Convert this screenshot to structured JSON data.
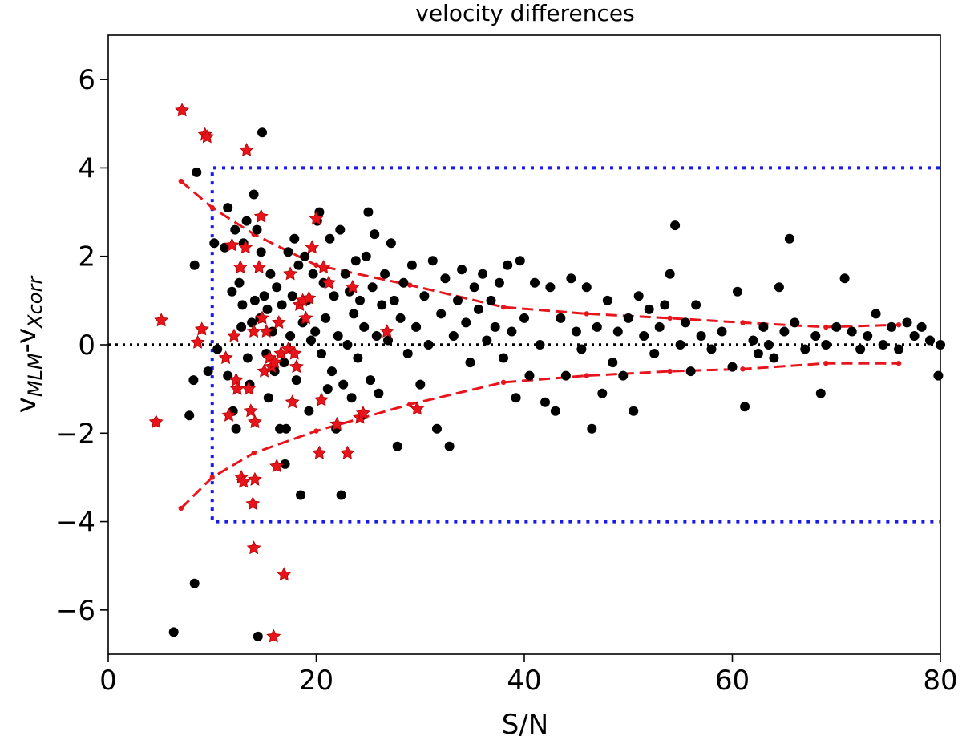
{
  "chart_data": {
    "type": "scatter",
    "title": "velocity differences",
    "xlabel": "S/N",
    "ylabel": {
      "base1": "v",
      "sub1": "MLM",
      "sep": "-v",
      "sub2": "Xcorr"
    },
    "xlim": [
      0,
      80
    ],
    "ylim": [
      -7,
      7
    ],
    "xticks": [
      0,
      20,
      40,
      60,
      80
    ],
    "yticks": [
      -6,
      -4,
      -2,
      0,
      2,
      4,
      6
    ],
    "xtick_labels": [
      "0",
      "20",
      "40",
      "60",
      "80"
    ],
    "ytick_labels": [
      "−6",
      "−4",
      "−2",
      "0",
      "2",
      "4",
      "6"
    ],
    "grid": false,
    "colors": {
      "points": "#000000",
      "flagged": "#e8141c",
      "envelope": "#e8141c",
      "box": "#1a1aee",
      "zero": "#000000"
    },
    "zero_line": {
      "y": 0,
      "style": "dotted",
      "color": "#000000"
    },
    "selection_box": {
      "x_min": 10,
      "x_max": 80,
      "y_min": -4,
      "y_max": 4,
      "style": "dotted",
      "color": "#1a1aee"
    },
    "envelope": [
      {
        "name": "upper",
        "style": "dashed",
        "x": [
          7,
          10,
          14,
          20,
          29,
          38,
          46,
          54,
          61,
          69,
          76
        ],
        "y": [
          3.7,
          3.1,
          2.5,
          1.8,
          1.35,
          0.85,
          0.7,
          0.6,
          0.5,
          0.4,
          0.45
        ]
      },
      {
        "name": "lower",
        "style": "dashed",
        "x": [
          7,
          10,
          14,
          20,
          29,
          38,
          46,
          54,
          61,
          69,
          76
        ],
        "y": [
          -3.7,
          -3.0,
          -2.45,
          -1.95,
          -1.35,
          -0.85,
          -0.7,
          -0.6,
          -0.55,
          -0.42,
          -0.42
        ]
      }
    ],
    "series": [
      {
        "name": "measurements",
        "marker": "circle",
        "points": [
          [
            6.3,
            -6.5
          ],
          [
            7.8,
            -1.6
          ],
          [
            8.2,
            -0.8
          ],
          [
            8.3,
            1.8
          ],
          [
            8.5,
            3.9
          ],
          [
            8.3,
            -5.4
          ],
          [
            9.6,
            -0.6
          ],
          [
            10.2,
            2.3
          ],
          [
            10.5,
            -0.1
          ],
          [
            11.2,
            2.2
          ],
          [
            11.5,
            3.1
          ],
          [
            11.5,
            -0.7
          ],
          [
            11.9,
            1.2
          ],
          [
            12,
            -1.5
          ],
          [
            12.2,
            2.6
          ],
          [
            12.3,
            -1.9
          ],
          [
            12.6,
            1.4
          ],
          [
            12.8,
            0.4
          ],
          [
            12.9,
            0.9
          ],
          [
            13,
            2.3
          ],
          [
            13.3,
            2.8
          ],
          [
            13.4,
            -0.3
          ],
          [
            13.6,
            -0.9
          ],
          [
            13.8,
            0.5
          ],
          [
            14,
            3.4
          ],
          [
            14.1,
            1.0
          ],
          [
            14.3,
            2.6
          ],
          [
            14.4,
            -6.6
          ],
          [
            14.6,
            0.6
          ],
          [
            14.7,
            2.1
          ],
          [
            14.8,
            4.8
          ],
          [
            15,
            1.1
          ],
          [
            15.2,
            -0.2
          ],
          [
            15.3,
            0.8
          ],
          [
            15.4,
            -1.2
          ],
          [
            15.6,
            1.6
          ],
          [
            15.8,
            0.3
          ],
          [
            16,
            -0.6
          ],
          [
            16.2,
            1.3
          ],
          [
            16.5,
            -1.9
          ],
          [
            16.7,
            0.9
          ],
          [
            16.9,
            -0.4
          ],
          [
            17,
            -2.7
          ],
          [
            17.1,
            -1.9
          ],
          [
            17.3,
            2.1
          ],
          [
            17.5,
            0.2
          ],
          [
            17.7,
            1.1
          ],
          [
            17.9,
            2.4
          ],
          [
            18.1,
            -0.8
          ],
          [
            18.3,
            1.8
          ],
          [
            18.5,
            -3.4
          ],
          [
            18.7,
            0.5
          ],
          [
            18.9,
            2.0
          ],
          [
            19.1,
            1.0
          ],
          [
            19.3,
            -1.5
          ],
          [
            19.5,
            0.1
          ],
          [
            19.7,
            1.6
          ],
          [
            19.9,
            0.3
          ],
          [
            20.1,
            2.8
          ],
          [
            20.3,
            3.0
          ],
          [
            20.5,
            -0.2
          ],
          [
            20.7,
            1.4
          ],
          [
            20.9,
            0.6
          ],
          [
            21.1,
            -1.0
          ],
          [
            21.3,
            2.4
          ],
          [
            21.5,
            -0.6
          ],
          [
            21.7,
            1.1
          ],
          [
            21.9,
            -1.9
          ],
          [
            22.1,
            0.2
          ],
          [
            22.3,
            2.6
          ],
          [
            22.4,
            -3.4
          ],
          [
            22.6,
            -0.9
          ],
          [
            22.8,
            1.6
          ],
          [
            23,
            0.0
          ],
          [
            23.2,
            1.2
          ],
          [
            23.4,
            -1.2
          ],
          [
            23.6,
            0.7
          ],
          [
            23.8,
            1.9
          ],
          [
            24,
            -0.3
          ],
          [
            24.2,
            1.0
          ],
          [
            24.4,
            -1.6
          ],
          [
            24.6,
            0.4
          ],
          [
            24.8,
            2.0
          ],
          [
            25,
            3.0
          ],
          [
            25.2,
            -0.8
          ],
          [
            25.4,
            1.3
          ],
          [
            25.6,
            2.5
          ],
          [
            25.8,
            0.2
          ],
          [
            26,
            -1.1
          ],
          [
            26.3,
            0.9
          ],
          [
            26.6,
            1.6
          ],
          [
            26.9,
            0.1
          ],
          [
            27.2,
            2.3
          ],
          [
            27.5,
            1.0
          ],
          [
            27.8,
            -2.3
          ],
          [
            28.1,
            0.6
          ],
          [
            28.4,
            1.4
          ],
          [
            28.8,
            -0.2
          ],
          [
            29.2,
            1.8
          ],
          [
            29.6,
            0.4
          ],
          [
            30,
            -0.9
          ],
          [
            30.4,
            1.1
          ],
          [
            30.8,
            0.0
          ],
          [
            31.2,
            1.9
          ],
          [
            31.6,
            -1.9
          ],
          [
            32,
            0.7
          ],
          [
            32.4,
            1.5
          ],
          [
            32.8,
            -2.3
          ],
          [
            33.2,
            0.2
          ],
          [
            33.6,
            1.0
          ],
          [
            34,
            1.7
          ],
          [
            34.4,
            0.5
          ],
          [
            34.8,
            -0.4
          ],
          [
            35.2,
            1.3
          ],
          [
            35.6,
            0.8
          ],
          [
            36,
            1.6
          ],
          [
            36.4,
            0.1
          ],
          [
            36.8,
            1.0
          ],
          [
            37.2,
            0.4
          ],
          [
            37.6,
            1.4
          ],
          [
            38,
            -0.3
          ],
          [
            38.4,
            1.8
          ],
          [
            38.8,
            0.3
          ],
          [
            39.2,
            -1.2
          ],
          [
            39.6,
            1.9
          ],
          [
            40,
            0.6
          ],
          [
            40.5,
            -0.7
          ],
          [
            41,
            1.4
          ],
          [
            41.5,
            0.0
          ],
          [
            42,
            -1.3
          ],
          [
            42.5,
            1.3
          ],
          [
            43,
            -1.5
          ],
          [
            43.5,
            0.6
          ],
          [
            44,
            -0.7
          ],
          [
            44.5,
            1.5
          ],
          [
            45,
            0.3
          ],
          [
            45.5,
            -0.1
          ],
          [
            46,
            1.3
          ],
          [
            46.5,
            -1.9
          ],
          [
            47,
            0.4
          ],
          [
            47.5,
            -1.1
          ],
          [
            48,
            1.0
          ],
          [
            48.5,
            -0.4
          ],
          [
            49,
            0.3
          ],
          [
            49.5,
            -0.7
          ],
          [
            50,
            0.6
          ],
          [
            50.5,
            -1.5
          ],
          [
            51,
            1.1
          ],
          [
            51.5,
            0.2
          ],
          [
            52,
            0.8
          ],
          [
            52.5,
            -0.2
          ],
          [
            53,
            0.4
          ],
          [
            53.5,
            0.9
          ],
          [
            54,
            1.6
          ],
          [
            54.5,
            2.7
          ],
          [
            55,
            0.0
          ],
          [
            55.5,
            0.5
          ],
          [
            56,
            -0.6
          ],
          [
            56.5,
            0.9
          ],
          [
            57,
            0.2
          ],
          [
            58,
            -0.1
          ],
          [
            59,
            0.3
          ],
          [
            60,
            -0.5
          ],
          [
            60.5,
            1.2
          ],
          [
            61.2,
            -1.4
          ],
          [
            62,
            0.1
          ],
          [
            62.5,
            -0.2
          ],
          [
            63,
            0.4
          ],
          [
            63.5,
            0.0
          ],
          [
            64,
            -0.3
          ],
          [
            64.5,
            1.3
          ],
          [
            65,
            0.3
          ],
          [
            65.5,
            2.4
          ],
          [
            66,
            0.5
          ],
          [
            67,
            -0.1
          ],
          [
            68,
            0.2
          ],
          [
            68.5,
            -1.1
          ],
          [
            69,
            0.0
          ],
          [
            70,
            0.4
          ],
          [
            70.8,
            1.5
          ],
          [
            71.5,
            0.3
          ],
          [
            72.3,
            -0.1
          ],
          [
            73,
            0.2
          ],
          [
            73.8,
            0.7
          ],
          [
            74.5,
            0.0
          ],
          [
            75.3,
            0.4
          ],
          [
            76,
            -0.1
          ],
          [
            76.8,
            0.5
          ],
          [
            77.5,
            0.2
          ],
          [
            78.2,
            0.4
          ],
          [
            79,
            0.1
          ],
          [
            79.8,
            -0.7
          ],
          [
            80,
            0.0
          ]
        ]
      },
      {
        "name": "flagged",
        "marker": "star",
        "points": [
          [
            4.6,
            -1.75
          ],
          [
            5.1,
            0.55
          ],
          [
            7.1,
            5.3
          ],
          [
            8.6,
            0.05
          ],
          [
            9.0,
            0.35
          ],
          [
            9.3,
            4.75
          ],
          [
            9.5,
            4.7
          ],
          [
            11.3,
            -0.3
          ],
          [
            11.6,
            -1.6
          ],
          [
            11.9,
            2.25
          ],
          [
            12.1,
            0.2
          ],
          [
            12.3,
            -0.8
          ],
          [
            12.4,
            -1.0
          ],
          [
            12.7,
            1.75
          ],
          [
            12.8,
            -3.0
          ],
          [
            13.0,
            -3.1
          ],
          [
            13.2,
            2.2
          ],
          [
            13.3,
            4.4
          ],
          [
            13.5,
            -1.0
          ],
          [
            13.7,
            -1.5
          ],
          [
            13.9,
            -3.6
          ],
          [
            14.0,
            -4.6
          ],
          [
            14.1,
            -3.05
          ],
          [
            14.0,
            0.3
          ],
          [
            14.1,
            -1.75
          ],
          [
            14.5,
            1.75
          ],
          [
            14.7,
            2.9
          ],
          [
            14.8,
            0.6
          ],
          [
            15.0,
            -0.6
          ],
          [
            15.2,
            0.3
          ],
          [
            15.5,
            -0.3
          ],
          [
            15.7,
            -0.5
          ],
          [
            15.9,
            -6.6
          ],
          [
            16.0,
            -0.4
          ],
          [
            16.2,
            -2.75
          ],
          [
            16.4,
            0.5
          ],
          [
            16.6,
            -0.2
          ],
          [
            16.9,
            -5.2
          ],
          [
            17.3,
            -0.1
          ],
          [
            17.5,
            1.6
          ],
          [
            17.7,
            -1.3
          ],
          [
            17.9,
            -0.2
          ],
          [
            18.1,
            -0.5
          ],
          [
            18.4,
            0.9
          ],
          [
            18.7,
            1.0
          ],
          [
            19.0,
            0.6
          ],
          [
            19.3,
            1.05
          ],
          [
            19.6,
            2.2
          ],
          [
            20.0,
            2.85
          ],
          [
            20.3,
            -2.45
          ],
          [
            20.5,
            -1.25
          ],
          [
            20.7,
            1.75
          ],
          [
            21.2,
            1.4
          ],
          [
            22.0,
            -1.8
          ],
          [
            23.0,
            -2.45
          ],
          [
            23.5,
            1.3
          ],
          [
            24.2,
            -1.65
          ],
          [
            24.5,
            -1.55
          ],
          [
            26.8,
            0.3
          ],
          [
            29.7,
            -1.45
          ]
        ]
      }
    ]
  }
}
